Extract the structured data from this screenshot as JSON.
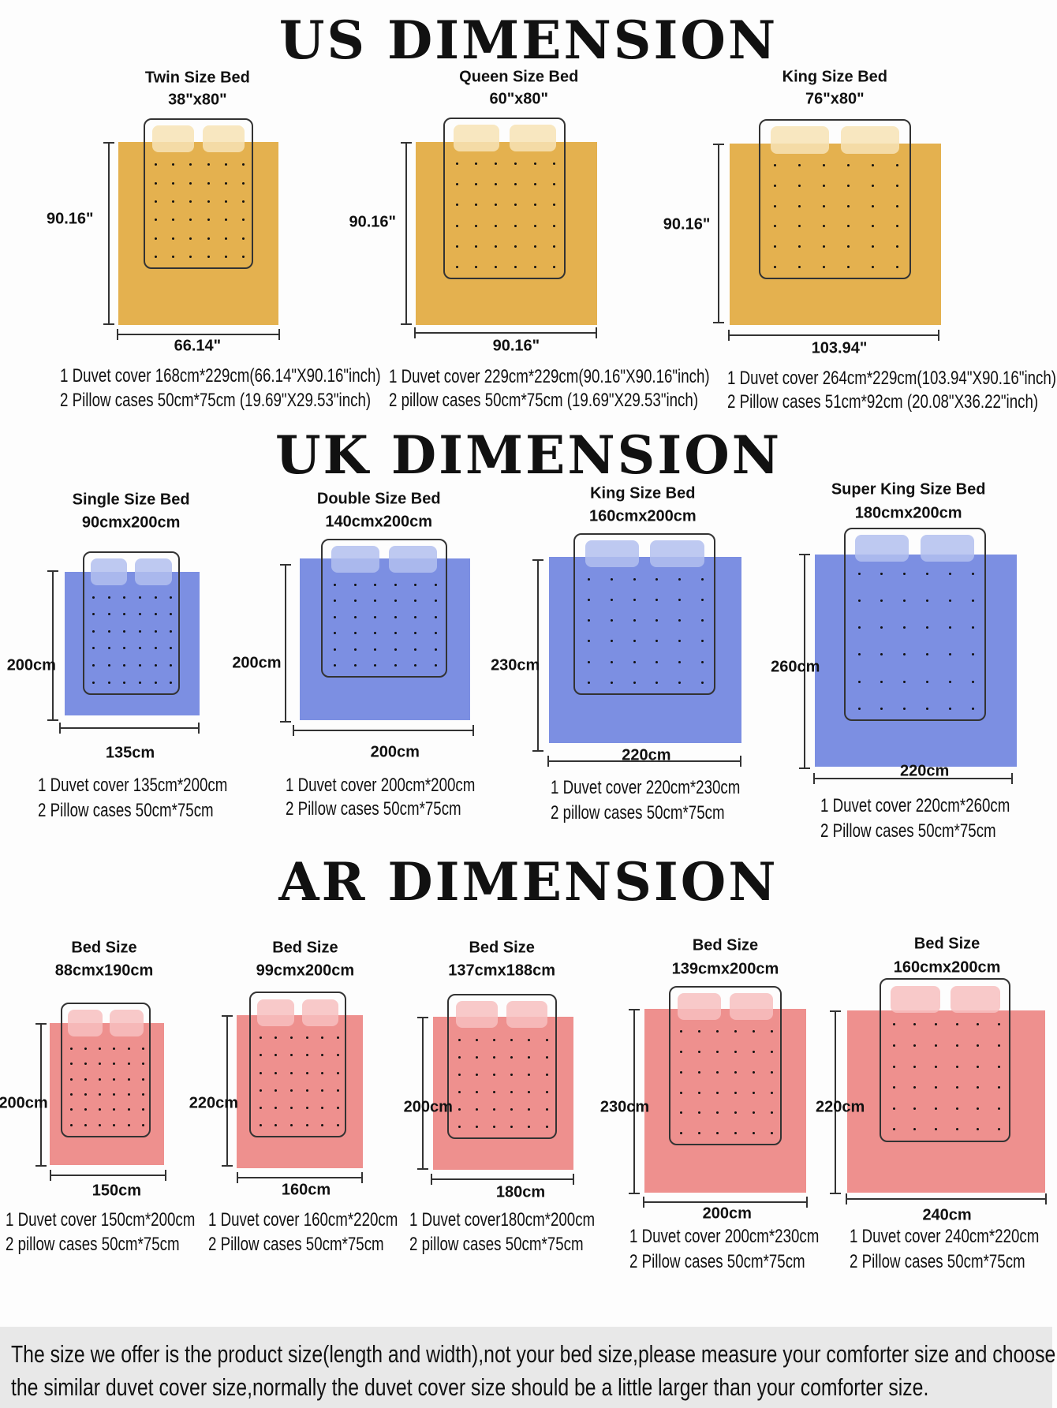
{
  "colors": {
    "us": "#e4b14f",
    "us_pillow": "#f7e3b5",
    "uk": "#7c8fe2",
    "uk_pillow": "#b3c0ef",
    "ar": "#ee908e",
    "ar_pillow": "#f7c0bf"
  },
  "sections": [
    {
      "title": "US DIMENSION",
      "color_key": "us",
      "beds": [
        {
          "name": "Twin Size Bed",
          "dims": "38\"x80\"",
          "height": "90.16\"",
          "width": "66.14\"",
          "line1": "1 Duvet cover 168cm*229cm(66.14\"X90.16\"inch)",
          "line2": "2 Pillow cases 50cm*75cm (19.69\"X29.53\"inch)"
        },
        {
          "name": "Queen Size Bed",
          "dims": "60\"x80\"",
          "height": "90.16\"",
          "width": "90.16\"",
          "line1": "1 Duvet cover 229cm*229cm(90.16\"X90.16\"inch)",
          "line2": "2 pillow cases 50cm*75cm  (19.69\"X29.53\"inch)"
        },
        {
          "name": "King Size Bed",
          "dims": "76\"x80\"",
          "height": "90.16\"",
          "width": "103.94\"",
          "line1": "1 Duvet cover 264cm*229cm(103.94\"X90.16\"inch)",
          "line2": "2 Pillow cases 51cm*92cm (20.08\"X36.22\"inch)"
        }
      ]
    },
    {
      "title": "UK DIMENSION",
      "color_key": "uk",
      "beds": [
        {
          "name": "Single Size Bed",
          "dims": "90cmx200cm",
          "height": "200cm",
          "width": "135cm",
          "line1": "1 Duvet cover 135cm*200cm",
          "line2": "2 Pillow cases 50cm*75cm"
        },
        {
          "name": "Double Size Bed",
          "dims": "140cmx200cm",
          "height": "200cm",
          "width": "200cm",
          "line1": "1 Duvet cover 200cm*200cm",
          "line2": "2 Pillow cases 50cm*75cm"
        },
        {
          "name": "King Size Bed",
          "dims": "160cmx200cm",
          "height": "230cm",
          "width": "220cm",
          "line1": "1 Duvet cover 220cm*230cm",
          "line2": "2 pillow cases 50cm*75cm"
        },
        {
          "name": "Super King Size Bed",
          "dims": "180cmx200cm",
          "height": "260cm",
          "width": "220cm",
          "line1": "1 Duvet cover 220cm*260cm",
          "line2": "2 Pillow cases 50cm*75cm"
        }
      ]
    },
    {
      "title": "AR DIMENSION",
      "color_key": "ar",
      "beds": [
        {
          "name": "Bed Size",
          "dims": "88cmx190cm",
          "height": "200cm",
          "width": "150cm",
          "line1": "1 Duvet cover 150cm*200cm",
          "line2": "2 pillow cases 50cm*75cm"
        },
        {
          "name": "Bed Size",
          "dims": "99cmx200cm",
          "height": "220cm",
          "width": "160cm",
          "line1": "1 Duvet cover 160cm*220cm",
          "line2": "2 Pillow cases 50cm*75cm"
        },
        {
          "name": "Bed Size",
          "dims": "137cmx188cm",
          "height": "200cm",
          "width": "180cm",
          "line1": "1 Duvet cover180cm*200cm",
          "line2": "2 pillow cases 50cm*75cm"
        },
        {
          "name": "Bed Size",
          "dims": "139cmx200cm",
          "height": "230cm",
          "width": "200cm",
          "line1": "1 Duvet cover 200cm*230cm",
          "line2": "2 Pillow cases 50cm*75cm"
        },
        {
          "name": "Bed Size",
          "dims": "160cmx200cm",
          "height": "220cm",
          "width": "240cm",
          "line1": "1 Duvet cover 240cm*220cm",
          "line2": "2 Pillow cases 50cm*75cm"
        }
      ]
    }
  ],
  "footer": {
    "line1": "The size we offer is the product size(length and width),not your bed size,please measure your comforter size and choose",
    "line2": "the similar duvet cover size,normally the duvet cover size should be a little larger than your comforter size."
  }
}
